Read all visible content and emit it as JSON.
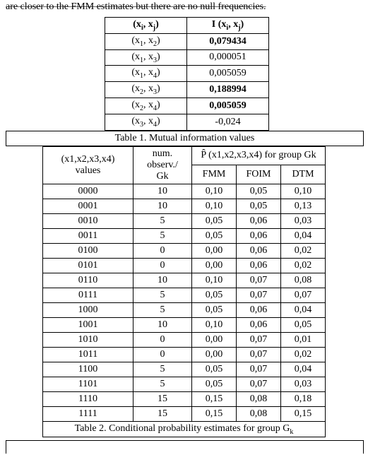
{
  "top_text": "are closer to the FMM estimates but there are no null frequencies.",
  "table1": {
    "header_pair": "(x",
    "header_i": "i",
    "header_j": "j",
    "header_I": "I (x",
    "rows": [
      {
        "pair_i": "1",
        "pair_j": "2",
        "value": "0,079434",
        "bold": true
      },
      {
        "pair_i": "1",
        "pair_j": "3",
        "value": "0,000051",
        "bold": false
      },
      {
        "pair_i": "1",
        "pair_j": "4",
        "value": "0,005059",
        "bold": false
      },
      {
        "pair_i": "2",
        "pair_j": "3",
        "value": "0,188994",
        "bold": true
      },
      {
        "pair_i": "2",
        "pair_j": "4",
        "value": "0,005059",
        "bold": true
      },
      {
        "pair_i": "3",
        "pair_j": "4",
        "value": "-0,024",
        "bold": false
      }
    ],
    "caption": "Table 1. Mutual information values"
  },
  "table2": {
    "col_values_label_l1": "(x1,x2,x3,x4)",
    "col_values_label_l2": "values",
    "col_num_l1": "num.",
    "col_num_l2": "observ./",
    "col_num_l3": "Gk",
    "col_p_header": " (x1,x2,x3,x4)  for group Gk",
    "col_p_sub1": "FMM",
    "col_p_sub2": "FOIM",
    "col_p_sub3": "DTM",
    "rows": [
      {
        "v": "0000",
        "n": "10",
        "fmm": "0,10",
        "foim": "0,05",
        "dtm": "0,10"
      },
      {
        "v": "0001",
        "n": "10",
        "fmm": "0,10",
        "foim": "0,05",
        "dtm": "0,13"
      },
      {
        "v": "0010",
        "n": "5",
        "fmm": "0,05",
        "foim": "0,06",
        "dtm": "0,03"
      },
      {
        "v": "0011",
        "n": "5",
        "fmm": "0,05",
        "foim": "0,06",
        "dtm": "0,04"
      },
      {
        "v": "0100",
        "n": "0",
        "fmm": "0,00",
        "foim": "0,06",
        "dtm": "0,02"
      },
      {
        "v": "0101",
        "n": "0",
        "fmm": "0,00",
        "foim": "0,06",
        "dtm": "0,02"
      },
      {
        "v": "0110",
        "n": "10",
        "fmm": "0,10",
        "foim": "0,07",
        "dtm": "0,08"
      },
      {
        "v": "0111",
        "n": "5",
        "fmm": "0,05",
        "foim": "0,07",
        "dtm": "0,07"
      },
      {
        "v": "1000",
        "n": "5",
        "fmm": "0,05",
        "foim": "0,06",
        "dtm": "0,04"
      },
      {
        "v": "1001",
        "n": "10",
        "fmm": "0,10",
        "foim": "0,06",
        "dtm": "0,05"
      },
      {
        "v": "1010",
        "n": "0",
        "fmm": "0,00",
        "foim": "0,07",
        "dtm": "0,01"
      },
      {
        "v": "1011",
        "n": "0",
        "fmm": "0,00",
        "foim": "0,07",
        "dtm": "0,02"
      },
      {
        "v": "1100",
        "n": "5",
        "fmm": "0,05",
        "foim": "0,07",
        "dtm": "0,04"
      },
      {
        "v": "1101",
        "n": "5",
        "fmm": "0,05",
        "foim": "0,07",
        "dtm": "0,03"
      },
      {
        "v": "1110",
        "n": "15",
        "fmm": "0,15",
        "foim": "0,08",
        "dtm": "0,18"
      },
      {
        "v": "1111",
        "n": "15",
        "fmm": "0,15",
        "foim": "0,08",
        "dtm": "0,15"
      }
    ],
    "caption_pre": "Table 2. Conditional probability estimates for group G",
    "caption_sub": "k"
  }
}
